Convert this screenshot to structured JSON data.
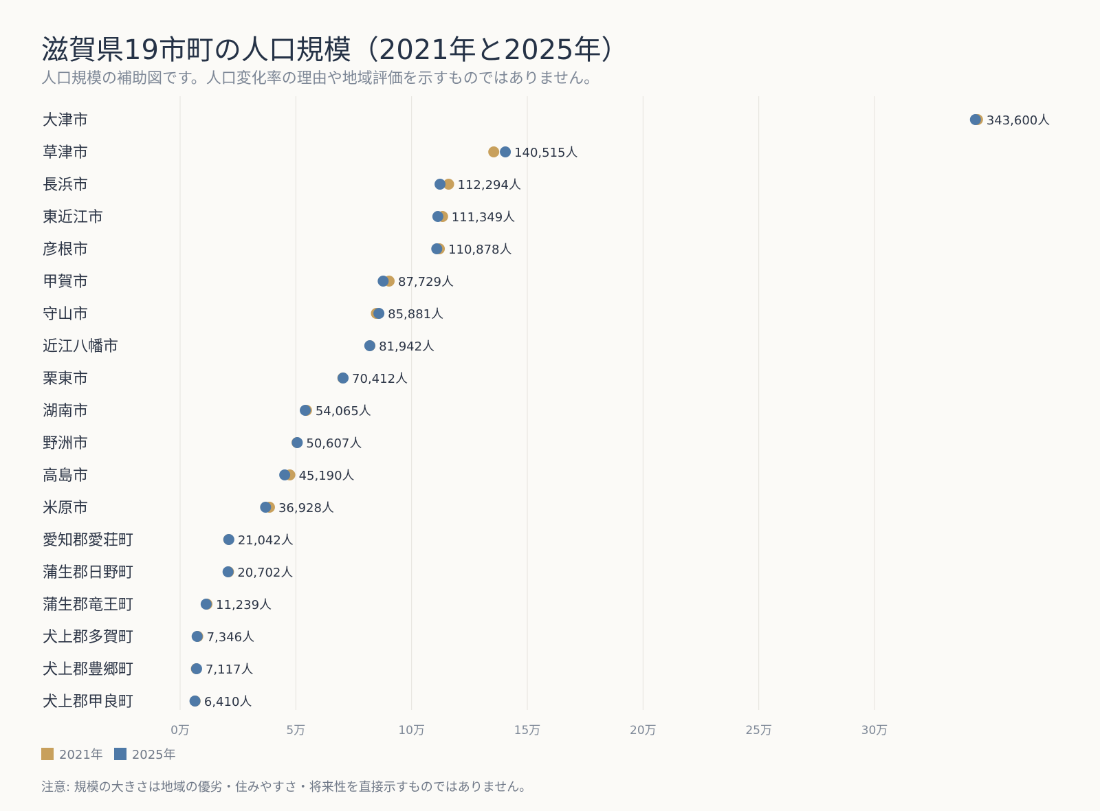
{
  "chart_data": {
    "type": "scatter",
    "title": "滋賀県19市町の人口規模（2021年と2025年）",
    "subtitle": "人口規模の補助図です。人口変化率の理由や地域評価を示すものではありません。",
    "note": "注意: 規模の大きさは地域の優劣・住みやすさ・将来性を直接示すものではありません。",
    "xlim": [
      0,
      380000
    ],
    "x_ticks": [
      {
        "value": 0,
        "label": "0万"
      },
      {
        "value": 50000,
        "label": "5万"
      },
      {
        "value": 100000,
        "label": "10万"
      },
      {
        "value": 150000,
        "label": "15万"
      },
      {
        "value": 200000,
        "label": "20万"
      },
      {
        "value": 250000,
        "label": "25万"
      },
      {
        "value": 300000,
        "label": "30万"
      }
    ],
    "grid": true,
    "legend_position": "bottom-left",
    "series": [
      {
        "name": "2021年",
        "color": "#c8a05c"
      },
      {
        "name": "2025年",
        "color": "#4e79a7"
      }
    ],
    "categories": [
      "大津市",
      "草津市",
      "長浜市",
      "東近江市",
      "彦根市",
      "甲賀市",
      "守山市",
      "近江八幡市",
      "栗東市",
      "湖南市",
      "野洲市",
      "高島市",
      "米原市",
      "愛知郡愛荘町",
      "蒲生郡日野町",
      "蒲生郡竜王町",
      "犬上郡多賀町",
      "犬上郡豊郷町",
      "犬上郡甲良町"
    ],
    "values_2021": [
      344500,
      135500,
      116000,
      113400,
      112000,
      90300,
      84800,
      82000,
      70300,
      54600,
      50500,
      47400,
      38600,
      21000,
      20900,
      11600,
      7600,
      7000,
      6500
    ],
    "values_2025": [
      343600,
      140515,
      112294,
      111349,
      110878,
      87729,
      85881,
      81942,
      70412,
      54065,
      50607,
      45190,
      36928,
      21042,
      20702,
      11239,
      7346,
      7117,
      6410
    ],
    "value_labels": [
      "343,600人",
      "140,515人",
      "112,294人",
      "111,349人",
      "110,878人",
      "87,729人",
      "85,881人",
      "81,942人",
      "70,412人",
      "54,065人",
      "50,607人",
      "45,190人",
      "36,928人",
      "21,042人",
      "20,702人",
      "11,239人",
      "7,346人",
      "7,117人",
      "6,410人"
    ]
  }
}
